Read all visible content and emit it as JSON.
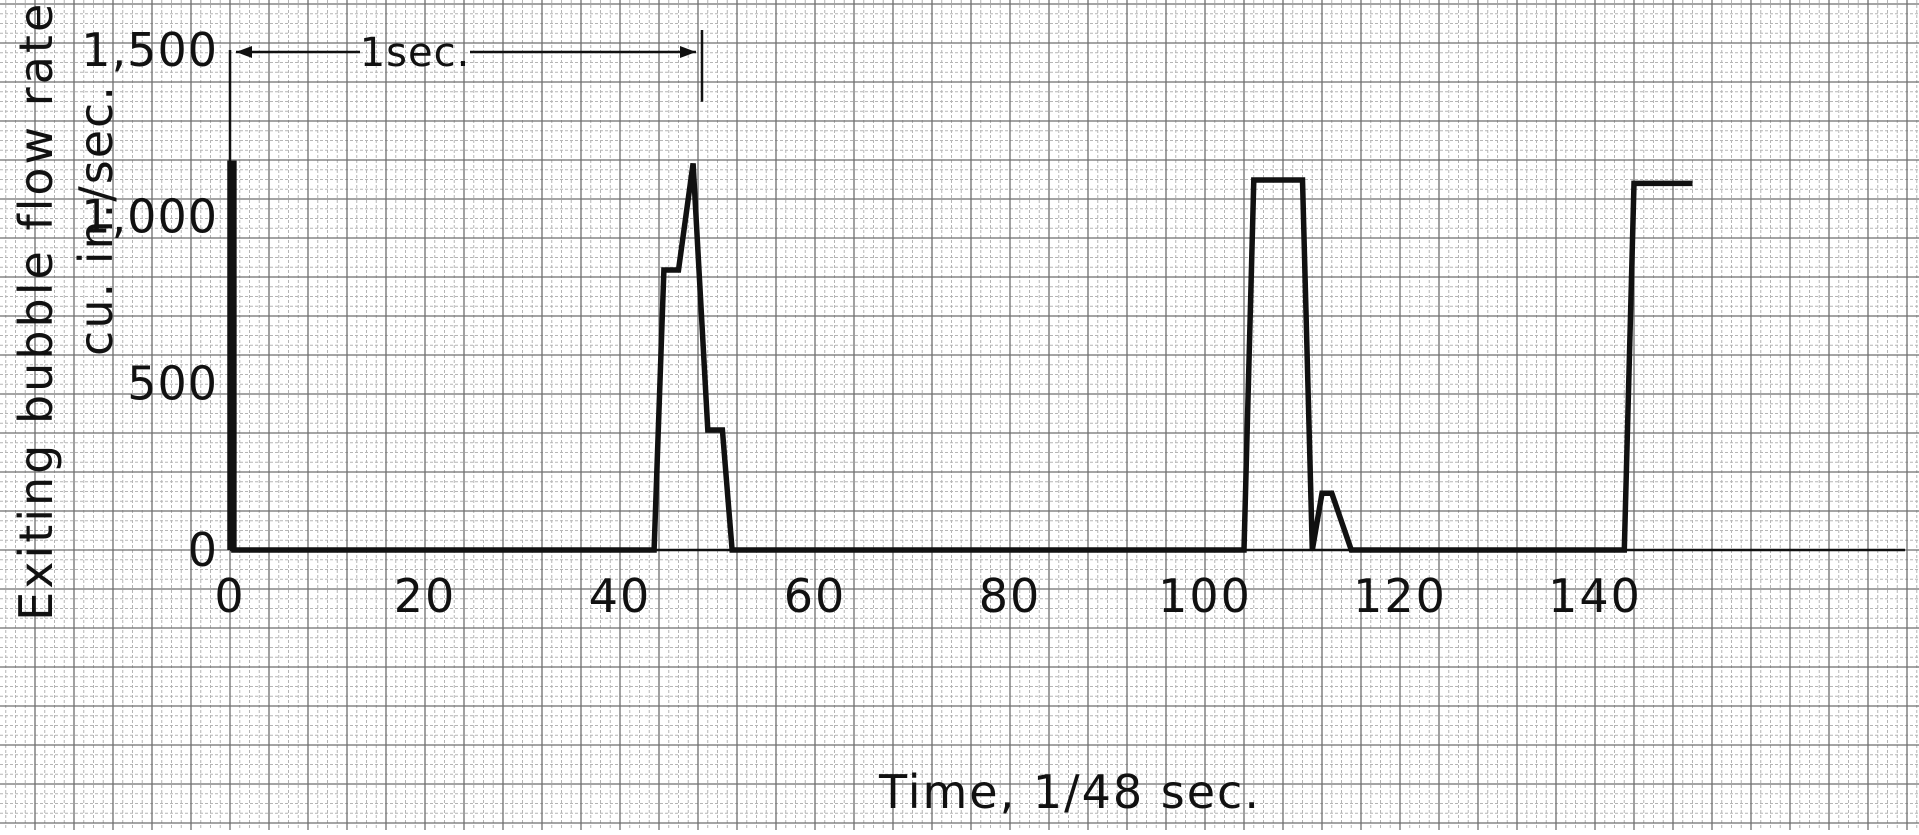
{
  "chart_data": {
    "type": "line",
    "title": "",
    "xlabel": "Time, 1/48 sec.",
    "ylabel_line1": "Exiting bubble flow rate,",
    "ylabel_line2": "cu. in./sec.",
    "xlim": [
      0,
      160
    ],
    "ylim": [
      0,
      1500
    ],
    "x_ticks": [
      0,
      20,
      40,
      60,
      80,
      100,
      120,
      140
    ],
    "x_tick_labels": [
      "0",
      "20",
      "40",
      "60",
      "80",
      "100",
      "120",
      "140"
    ],
    "y_ticks": [
      0,
      500,
      1000,
      1500
    ],
    "y_tick_labels": [
      "0",
      "500",
      "1,000",
      "1,500"
    ],
    "grid": true,
    "annotation": {
      "text": "1sec.",
      "x_start": 0,
      "x_end": 48
    },
    "series": [
      {
        "x": [
          0,
          0,
          0.4,
          0.4,
          43.5,
          44.5,
          46,
          47.5,
          49,
          50.5,
          51.5,
          52.5,
          104,
          105,
          110,
          111,
          112,
          113,
          115,
          116,
          143,
          144,
          150
        ],
        "y": [
          0,
          1160,
          1160,
          0,
          0,
          840,
          840,
          1160,
          360,
          360,
          0,
          0,
          0,
          1110,
          1110,
          0,
          170,
          170,
          0,
          0,
          0,
          1100,
          1100
        ]
      }
    ]
  },
  "colors": {
    "grid_minor": "#b5b5b5",
    "grid_major": "#6e6e6e",
    "line": "#111111",
    "background": "#ffffff"
  }
}
